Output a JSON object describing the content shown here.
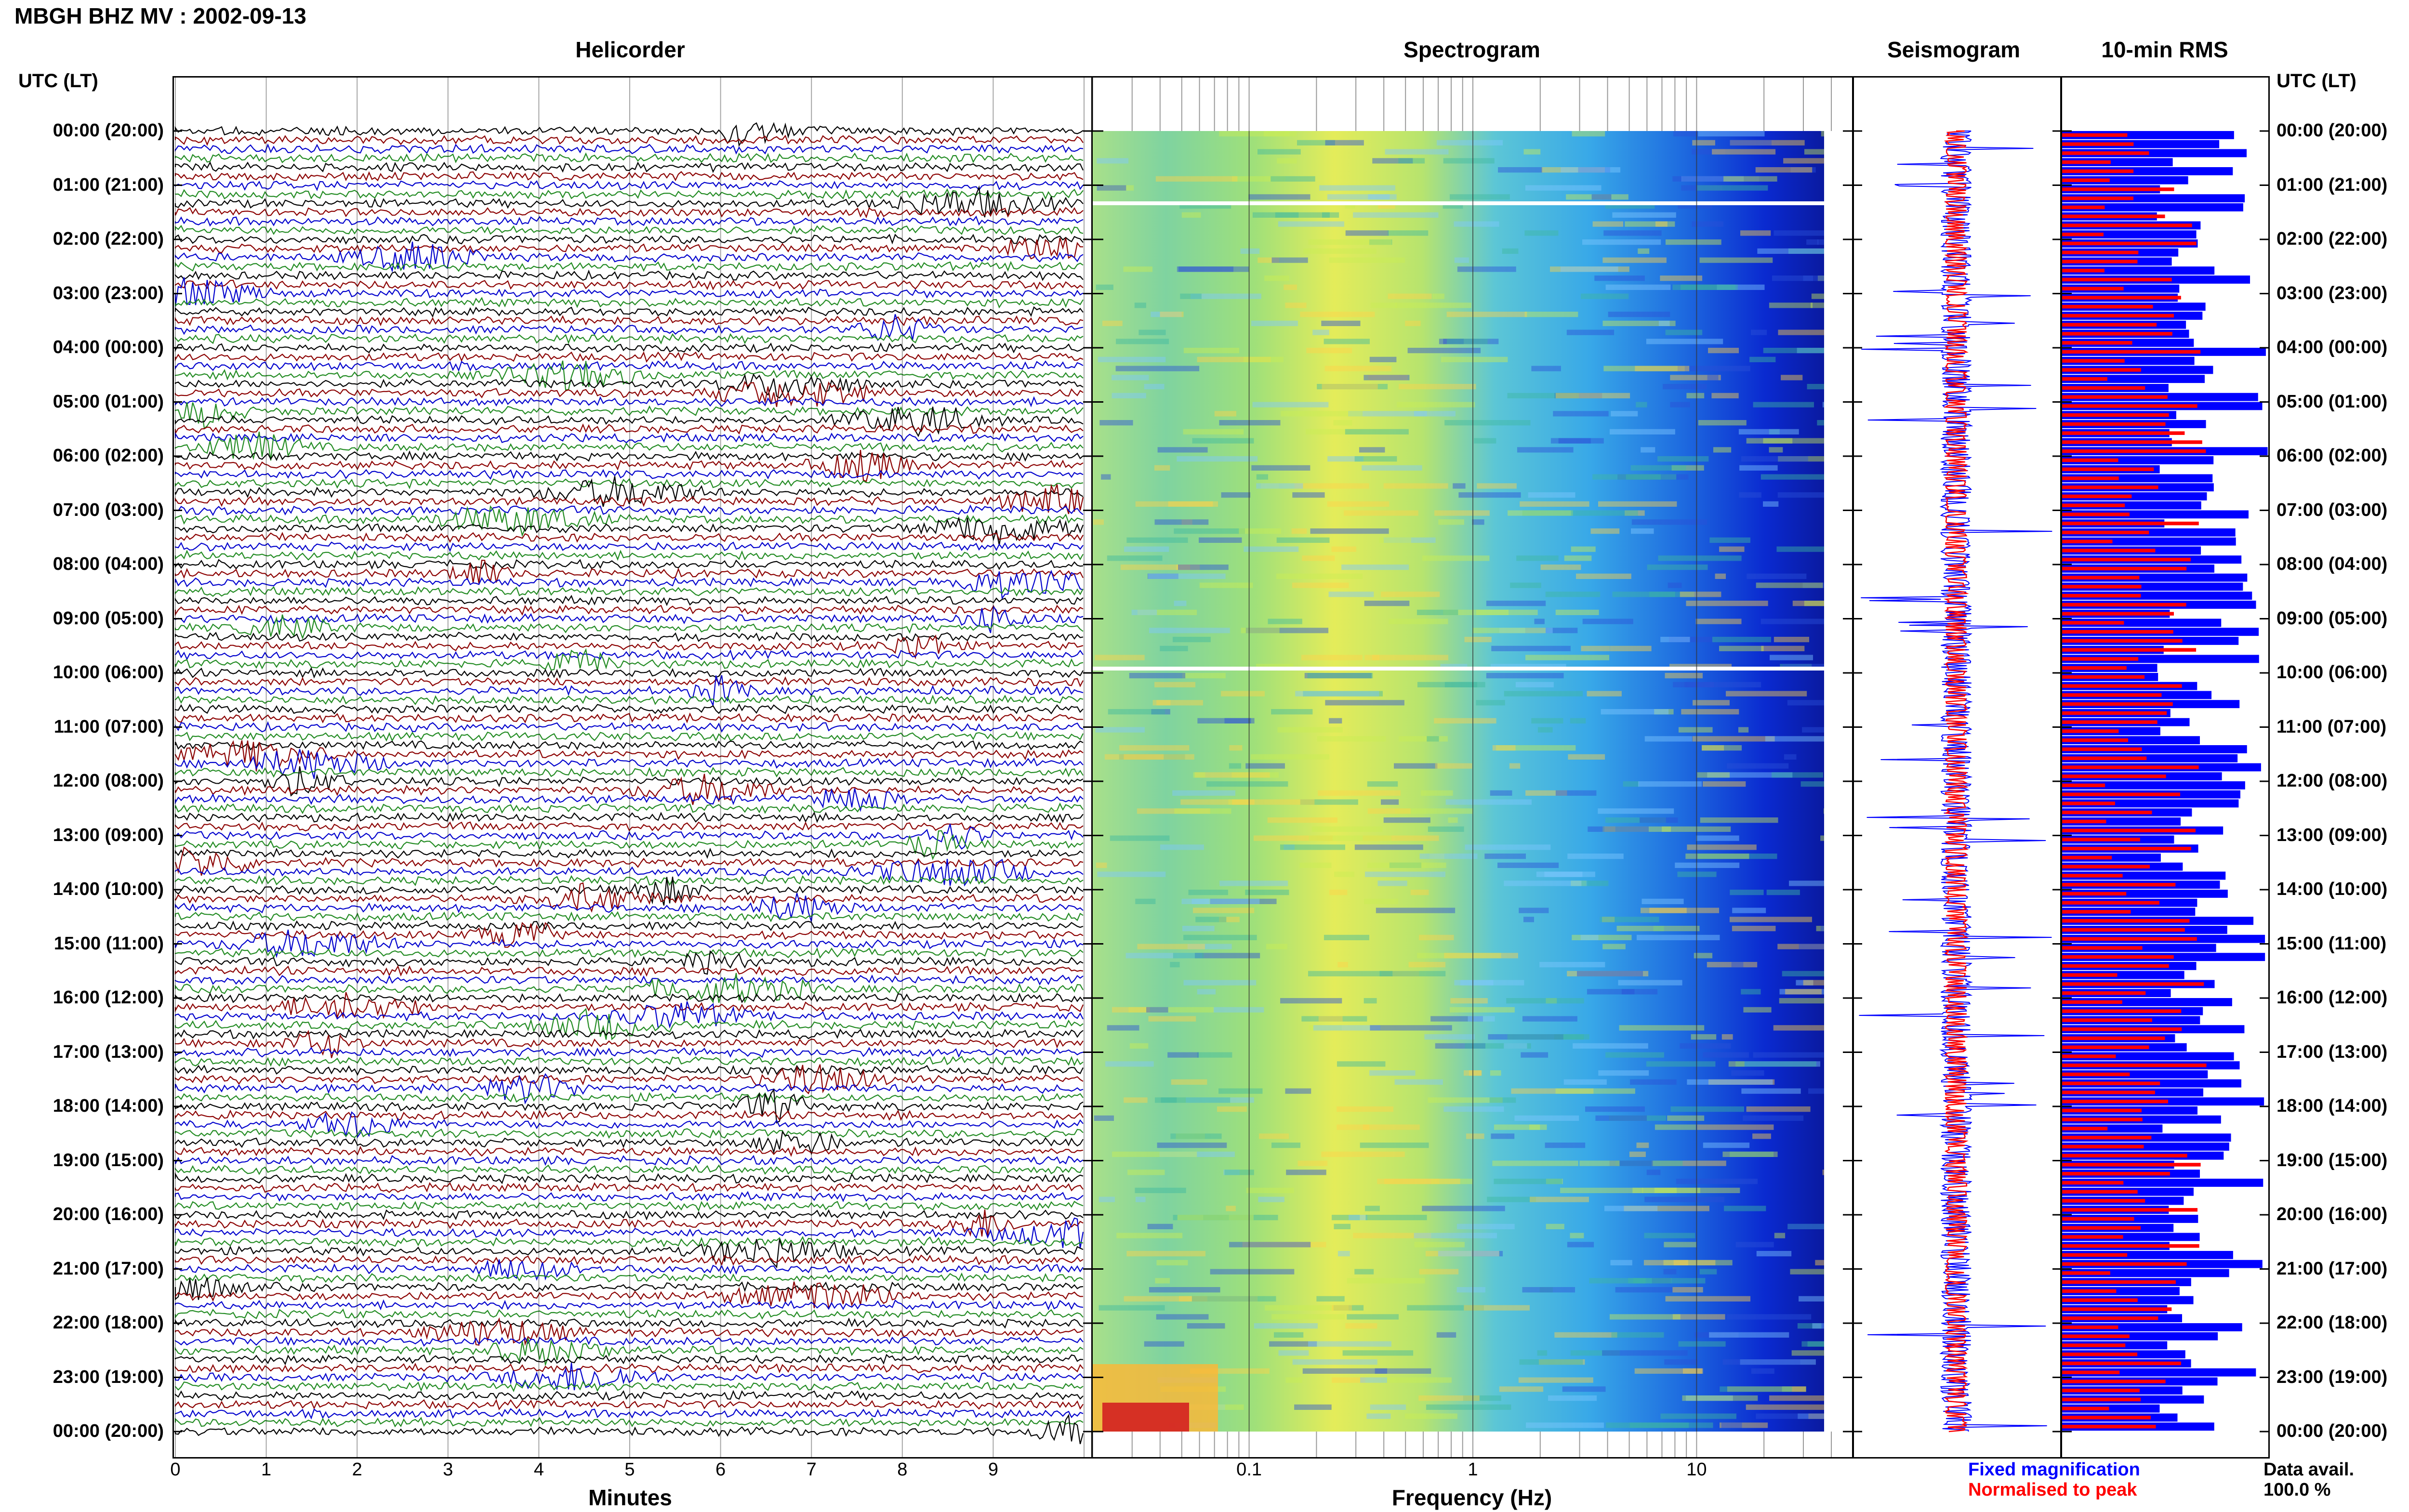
{
  "header": {
    "title": "MBGH BHZ MV : 2002-09-13",
    "utc_header_left": "UTC (LT)",
    "utc_header_right": "UTC (LT)"
  },
  "panels": {
    "helicorder": "Helicorder",
    "spectrogram": "Spectrogram",
    "seismogram": "Seismogram",
    "rms": "10-min RMS"
  },
  "footer": {
    "minutes_label": "Minutes",
    "frequency_label": "Frequency (Hz)",
    "legend_fixed": "Fixed magnification",
    "legend_normalised": "Normalised to peak",
    "data_avail_label": "Data avail.",
    "data_avail_value": "100.0 %"
  },
  "colors": {
    "trace_cycle": [
      "#000000",
      "#8b0000",
      "#0000cd",
      "#228b22"
    ],
    "fixed_magnification": "#0000ff",
    "normalised_to_peak": "#ff0000"
  },
  "chart_data": [
    {
      "type": "line",
      "name": "Helicorder",
      "xlabel": "Minutes",
      "xlim": [
        0,
        10
      ],
      "x_ticks": [
        "0",
        "1",
        "2",
        "3",
        "4",
        "5",
        "6",
        "7",
        "8",
        "9"
      ],
      "rows_per_hour": 6,
      "y_ticks": [
        "00:00 (20:00)",
        "01:00 (21:00)",
        "02:00 (22:00)",
        "03:00 (23:00)",
        "04:00 (00:00)",
        "05:00 (01:00)",
        "06:00 (02:00)",
        "07:00 (03:00)",
        "08:00 (04:00)",
        "09:00 (05:00)",
        "10:00 (06:00)",
        "11:00 (07:00)",
        "12:00 (08:00)",
        "13:00 (09:00)",
        "14:00 (10:00)",
        "15:00 (11:00)",
        "16:00 (12:00)",
        "17:00 (13:00)",
        "18:00 (14:00)",
        "19:00 (15:00)",
        "20:00 (16:00)",
        "21:00 (17:00)",
        "22:00 (18:00)",
        "23:00 (19:00)",
        "00:00 (20:00)"
      ]
    },
    {
      "type": "heatmap",
      "name": "Spectrogram",
      "xlabel": "Frequency (Hz)",
      "x_scale": "log",
      "x_ticks": [
        "0.1",
        "1",
        "10"
      ],
      "xlim": [
        0.02,
        50
      ]
    },
    {
      "type": "line",
      "name": "Seismogram",
      "series": [
        {
          "name": "Fixed magnification"
        },
        {
          "name": "Normalised to peak"
        }
      ]
    },
    {
      "type": "bar",
      "name": "10-min RMS",
      "orientation": "horizontal",
      "series": [
        {
          "name": "Fixed magnification"
        },
        {
          "name": "Normalised to peak"
        }
      ]
    }
  ]
}
